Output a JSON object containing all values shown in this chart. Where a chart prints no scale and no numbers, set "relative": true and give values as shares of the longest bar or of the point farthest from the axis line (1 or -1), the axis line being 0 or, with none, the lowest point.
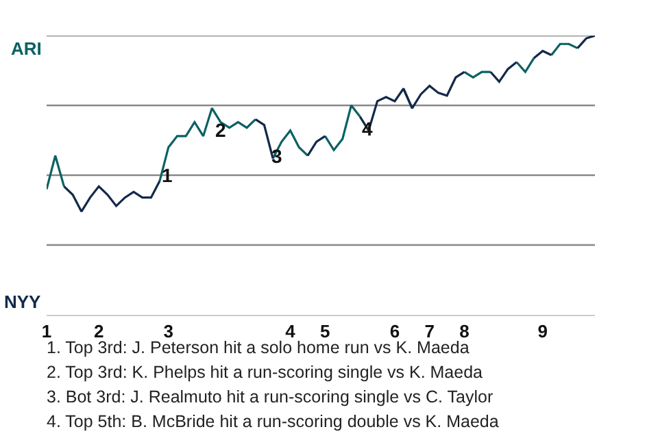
{
  "chart_data": {
    "type": "line",
    "relative": true,
    "categories": [
      "1",
      null,
      null,
      null,
      null,
      null,
      "2",
      null,
      null,
      null,
      null,
      null,
      null,
      null,
      "3",
      null,
      null,
      null,
      null,
      null,
      null,
      null,
      null,
      null,
      null,
      null,
      null,
      null,
      "4",
      null,
      null,
      null,
      "5",
      null,
      null,
      null,
      null,
      null,
      null,
      null,
      "6",
      null,
      null,
      null,
      "7",
      null,
      null,
      null,
      "8",
      null,
      null,
      null,
      null,
      null,
      null,
      null,
      null,
      "9",
      null,
      null,
      null,
      null,
      null,
      null
    ],
    "series": [
      {
        "color": "#0b6163",
        "values": [
          0.45,
          0.57,
          0.46,
          null,
          null,
          null,
          null,
          null,
          null,
          null,
          null,
          null,
          null,
          0.48,
          0.6,
          0.64,
          0.64,
          0.69,
          0.64,
          0.74,
          0.69,
          0.67,
          0.69,
          0.67,
          0.7,
          null,
          0.56,
          0.62,
          0.66,
          0.6,
          0.57,
          null,
          0.64,
          0.59,
          0.63,
          0.75,
          0.71,
          null,
          null,
          null,
          null,
          0.81,
          0.74,
          null,
          null,
          null,
          null,
          null,
          0.87,
          0.85,
          0.87,
          0.87,
          null,
          null,
          0.905,
          0.87,
          0.92,
          null,
          0.93,
          0.97,
          0.97,
          0.955,
          null,
          null
        ]
      },
      {
        "color": "#13294b",
        "values": [
          null,
          null,
          0.46,
          0.43,
          0.37,
          0.42,
          0.46,
          0.43,
          0.39,
          0.42,
          0.44,
          0.42,
          0.42,
          0.48,
          null,
          null,
          null,
          null,
          null,
          null,
          null,
          null,
          null,
          null,
          0.7,
          0.68,
          0.56,
          null,
          null,
          null,
          0.57,
          0.62,
          0.64,
          null,
          null,
          null,
          0.71,
          0.66,
          0.765,
          0.78,
          0.765,
          0.81,
          0.74,
          0.79,
          0.82,
          0.795,
          0.785,
          0.85,
          0.87,
          null,
          null,
          0.87,
          0.835,
          0.88,
          0.905,
          null,
          0.92,
          0.945,
          0.93,
          null,
          null,
          0.955,
          0.99,
          1
        ]
      }
    ],
    "ref_lines": [
      {
        "axis": "y",
        "value": 0.25,
        "color": "#888888"
      },
      {
        "axis": "y",
        "value": 0.5,
        "color": "#888888"
      },
      {
        "axis": "y",
        "value": 0.75,
        "color": "#888888"
      },
      {
        "axis": "y",
        "value": 1,
        "color": "#888888"
      }
    ],
    "line_style": "solid",
    "annotations": [
      "ARI",
      "NYY",
      {
        "text": "1",
        "y": 0.5
      },
      {
        "text": "2",
        "y": 0.66
      },
      {
        "text": "3",
        "y": 0.57
      },
      {
        "text": "4",
        "y": 0.665
      },
      "1. Top 3rd: J. Peterson hit a solo home run vs K. Maeda",
      "2. Top 3rd: K. Phelps hit a run-scoring single vs K. Maeda",
      "3. Bot 3rd: J. Realmuto hit a run-scoring single vs C. Taylor",
      "4. Top 5th: B. McBride hit a run-scoring double vs K. Maeda"
    ]
  }
}
